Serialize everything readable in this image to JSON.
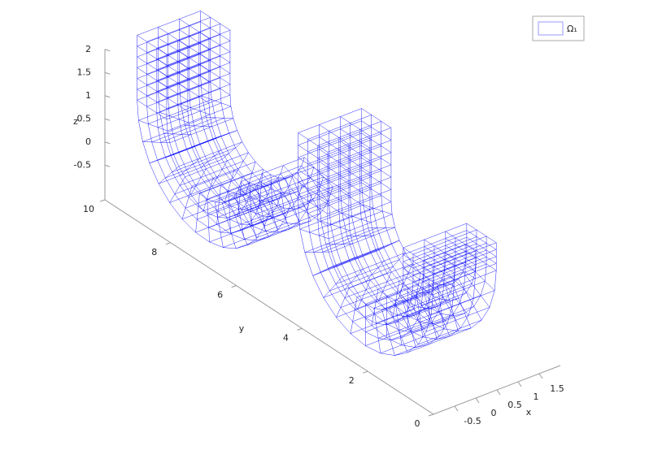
{
  "chart_data": {
    "type": "mesh3d",
    "xlabel": "x",
    "ylabel": "y",
    "zlabel": "z",
    "xlim": [
      -1,
      2
    ],
    "ylim": [
      0,
      10
    ],
    "zlim": [
      -1.25,
      2
    ],
    "xticks": [
      -0.5,
      0,
      0.5,
      1,
      1.5
    ],
    "yticks": [
      0,
      2,
      4,
      6,
      8,
      10
    ],
    "zticks": [
      -0.5,
      0,
      0.5,
      1,
      1.5,
      2
    ],
    "series": [
      {
        "name": "Ω₁",
        "color": "#0000ff"
      }
    ],
    "legend": "upper right"
  }
}
